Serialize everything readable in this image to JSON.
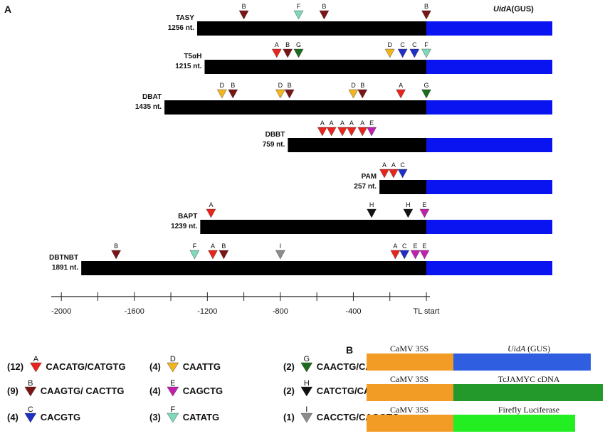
{
  "panel_a_label": "A",
  "panel_b_label": "B",
  "gus_label": {
    "italic": "Uid",
    "rest": "A(GUS)"
  },
  "constructs": [
    {
      "name": "TASY",
      "length": "1256 nt.",
      "bp": 1256,
      "sites": [
        {
          "code": "B",
          "pos": -1000
        },
        {
          "code": "F",
          "pos": -700
        },
        {
          "code": "B",
          "pos": -560
        },
        {
          "code": "B",
          "pos": 0
        }
      ]
    },
    {
      "name": "T5αH",
      "length": "1215 nt.",
      "bp": 1215,
      "sites": [
        {
          "code": "A",
          "pos": -820
        },
        {
          "code": "B",
          "pos": -760
        },
        {
          "code": "G",
          "pos": -700
        },
        {
          "code": "D",
          "pos": -200
        },
        {
          "code": "C",
          "pos": -130
        },
        {
          "code": "C",
          "pos": -65
        },
        {
          "code": "F",
          "pos": 0
        }
      ]
    },
    {
      "name": "DBAT",
      "length": "1435 nt.",
      "bp": 1435,
      "sites": [
        {
          "code": "D",
          "pos": -1120
        },
        {
          "code": "B",
          "pos": -1060
        },
        {
          "code": "D",
          "pos": -800
        },
        {
          "code": "B",
          "pos": -750
        },
        {
          "code": "D",
          "pos": -400
        },
        {
          "code": "B",
          "pos": -350
        },
        {
          "code": "A",
          "pos": -140
        },
        {
          "code": "G",
          "pos": 0
        }
      ]
    },
    {
      "name": "DBBT",
      "length": "759 nt.",
      "bp": 759,
      "sites": [
        {
          "code": "A",
          "pos": -570
        },
        {
          "code": "A",
          "pos": -520
        },
        {
          "code": "A",
          "pos": -460
        },
        {
          "code": "A",
          "pos": -410
        },
        {
          "code": "A",
          "pos": -350
        },
        {
          "code": "E",
          "pos": -300
        }
      ]
    },
    {
      "name": "PAM",
      "length": "257 nt.",
      "bp": 257,
      "sites": [
        {
          "code": "A",
          "pos": -230
        },
        {
          "code": "A",
          "pos": -180
        },
        {
          "code": "C",
          "pos": -130
        }
      ]
    },
    {
      "name": "BAPT",
      "length": "1239 nt.",
      "bp": 1239,
      "sites": [
        {
          "code": "A",
          "pos": -1180
        },
        {
          "code": "H",
          "pos": -300
        },
        {
          "code": "H",
          "pos": -100
        },
        {
          "code": "E",
          "pos": -10
        }
      ]
    },
    {
      "name": "DBTNBT",
      "length": "1891 nt.",
      "bp": 1891,
      "sites": [
        {
          "code": "B",
          "pos": -1700
        },
        {
          "code": "F",
          "pos": -1270
        },
        {
          "code": "A",
          "pos": -1170
        },
        {
          "code": "B",
          "pos": -1110
        },
        {
          "code": "I",
          "pos": -800
        },
        {
          "code": "A",
          "pos": -170
        },
        {
          "code": "C",
          "pos": -120
        },
        {
          "code": "E",
          "pos": -60
        },
        {
          "code": "E",
          "pos": -10
        }
      ]
    }
  ],
  "axis": {
    "ticks": [
      {
        "value": -2000,
        "label": "-2000"
      },
      {
        "value": -1600,
        "label": "-1600"
      },
      {
        "value": -1200,
        "label": "-1200"
      },
      {
        "value": -800,
        "label": "-800"
      },
      {
        "value": -400,
        "label": "-400"
      },
      {
        "value": 0,
        "label": "TL start"
      }
    ]
  },
  "colors": {
    "A": "#e8241c",
    "B": "#7b1414",
    "C": "#1f2fc6",
    "D": "#f3b51e",
    "E": "#c21fb0",
    "F": "#7fd9b8",
    "G": "#1d6b1d",
    "H": "#111111",
    "I": "#8c8c8c",
    "promoter_bar": "#000000",
    "gus_bar": "#0a14f0",
    "camv": "#f39c25",
    "uida": "#2f5fe0",
    "myc": "#23992c",
    "luc": "#22ee22"
  },
  "legend": [
    {
      "count": "(12)",
      "code": "A",
      "motif": "CACATG/CATGTG"
    },
    {
      "count": "(9)",
      "code": "B",
      "motif": "CAAGTG/ CACTTG"
    },
    {
      "count": "(4)",
      "code": "C",
      "motif": "CACGTG"
    },
    {
      "count": "(4)",
      "code": "D",
      "motif": "CAATTG"
    },
    {
      "count": "(4)",
      "code": "E",
      "motif": "CAGCTG"
    },
    {
      "count": "(3)",
      "code": "F",
      "motif": "CATATG"
    },
    {
      "count": "(2)",
      "code": "G",
      "motif": "CAACTG/CAGTTG"
    },
    {
      "count": "(2)",
      "code": "H",
      "motif": "CATCTG/CAGATG"
    },
    {
      "count": "(1)",
      "code": "I",
      "motif": "CACCTG/CAGGTG"
    }
  ],
  "panel_b": [
    {
      "promoter": "CaMV 35S",
      "gene": "UidA (GUS)",
      "gene_color_key": "uida",
      "italic": true
    },
    {
      "promoter": "CaMV 35S",
      "gene": "TcJAMYC cDNA",
      "gene_color_key": "myc",
      "italic": false
    },
    {
      "promoter": "CaMV 35S",
      "gene": "Firefly Luciferase",
      "gene_color_key": "luc",
      "italic": false
    }
  ]
}
